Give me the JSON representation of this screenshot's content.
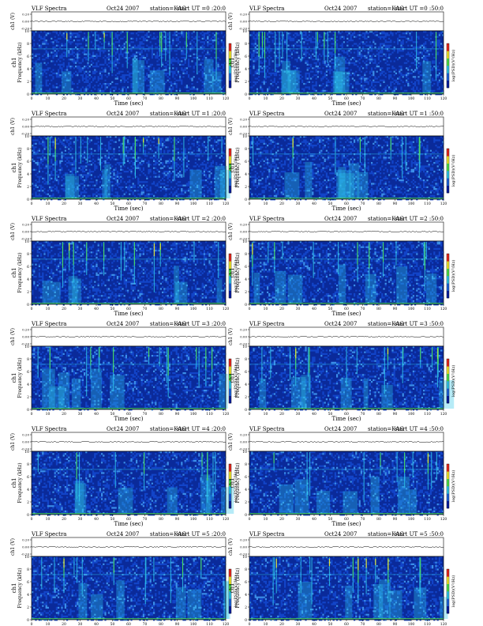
{
  "chart_data": [
    {
      "type": "heatmap",
      "heading": "VLF Spectra",
      "date": "Oct24 2007",
      "station": "station=KAG",
      "start_ut": "start UT =0 :20:0",
      "xlabel": "Time (sec)",
      "ylabel_top": "ch1 (V)",
      "ylabel_main": "ch1",
      "ylabel_freq": "Frequency (kHz)",
      "colorbar_label": "log(PSD)(V²/Hz)",
      "x_ticks": [
        0,
        10,
        20,
        30,
        40,
        50,
        60,
        70,
        80,
        90,
        100,
        110,
        120
      ],
      "y_ticks": [
        0,
        2,
        4,
        6,
        8,
        10
      ],
      "strip_ticks": [
        "0.20",
        "0.00",
        "-0.20"
      ],
      "xlim": [
        0,
        120
      ],
      "ylim": [
        0,
        10
      ]
    },
    {
      "type": "heatmap",
      "heading": "VLF Spectra",
      "date": "Oct24 2007",
      "station": "station=KAG",
      "start_ut": "start UT =0 :50:0",
      "xlabel": "Time (sec)",
      "ylabel_top": "ch1 (V)",
      "ylabel_main": "ch1",
      "ylabel_freq": "Frequency (kHz)",
      "colorbar_label": "log(PSD)(V²/Hz)",
      "x_ticks": [
        0,
        10,
        20,
        30,
        40,
        50,
        60,
        70,
        80,
        90,
        100,
        110,
        120
      ],
      "y_ticks": [
        0,
        2,
        4,
        6,
        8,
        10
      ],
      "strip_ticks": [
        "0.20",
        "0.00",
        "-0.20"
      ],
      "xlim": [
        0,
        120
      ],
      "ylim": [
        0,
        10
      ]
    },
    {
      "type": "heatmap",
      "heading": "VLF Spectra",
      "date": "Oct24 2007",
      "station": "station=KAG",
      "start_ut": "start UT =1 :20:0",
      "xlabel": "Time (sec)",
      "ylabel_top": "ch1 (V)",
      "ylabel_main": "ch1",
      "ylabel_freq": "Frequency (kHz)",
      "colorbar_label": "log(PSD)(V²/Hz)",
      "x_ticks": [
        0,
        10,
        20,
        30,
        40,
        50,
        60,
        70,
        80,
        90,
        100,
        110,
        120
      ],
      "y_ticks": [
        0,
        2,
        4,
        6,
        8,
        10
      ],
      "strip_ticks": [
        "0.20",
        "0.00",
        "-0.20"
      ],
      "xlim": [
        0,
        120
      ],
      "ylim": [
        0,
        10
      ]
    },
    {
      "type": "heatmap",
      "heading": "VLF Spectra",
      "date": "Oct24 2007",
      "station": "station=KAG",
      "start_ut": "start UT =1 :50:0",
      "xlabel": "Time (sec)",
      "ylabel_top": "ch1 (V)",
      "ylabel_main": "ch1",
      "ylabel_freq": "Frequency (kHz)",
      "colorbar_label": "log(PSD)(V²/Hz)",
      "x_ticks": [
        0,
        10,
        20,
        30,
        40,
        50,
        60,
        70,
        80,
        90,
        100,
        110,
        120
      ],
      "y_ticks": [
        0,
        2,
        4,
        6,
        8,
        10
      ],
      "strip_ticks": [
        "0.20",
        "0.00",
        "-0.20"
      ],
      "xlim": [
        0,
        120
      ],
      "ylim": [
        0,
        10
      ]
    },
    {
      "type": "heatmap",
      "heading": "VLF Spectra",
      "date": "Oct24 2007",
      "station": "station=KAG",
      "start_ut": "start UT =2 :20:0",
      "xlabel": "Time (sec)",
      "ylabel_top": "ch1 (V)",
      "ylabel_main": "ch1",
      "ylabel_freq": "Frequency (kHz)",
      "colorbar_label": "log(PSD)(V²/Hz)",
      "x_ticks": [
        0,
        10,
        20,
        30,
        40,
        50,
        60,
        70,
        80,
        90,
        100,
        110,
        120
      ],
      "y_ticks": [
        0,
        2,
        4,
        6,
        8,
        10
      ],
      "strip_ticks": [
        "0.20",
        "0.00",
        "-0.20"
      ],
      "xlim": [
        0,
        120
      ],
      "ylim": [
        0,
        10
      ]
    },
    {
      "type": "heatmap",
      "heading": "VLF Spectra",
      "date": "Oct24 2007",
      "station": "station=KAG",
      "start_ut": "start UT =2 :50:0",
      "xlabel": "Time (sec)",
      "ylabel_top": "ch1 (V)",
      "ylabel_main": "ch1",
      "ylabel_freq": "Frequency (kHz)",
      "colorbar_label": "log(PSD)(V²/Hz)",
      "x_ticks": [
        0,
        10,
        20,
        30,
        40,
        50,
        60,
        70,
        80,
        90,
        100,
        110,
        120
      ],
      "y_ticks": [
        0,
        2,
        4,
        6,
        8,
        10
      ],
      "strip_ticks": [
        "0.20",
        "0.00",
        "-0.20"
      ],
      "xlim": [
        0,
        120
      ],
      "ylim": [
        0,
        10
      ]
    },
    {
      "type": "heatmap",
      "heading": "VLF Spectra",
      "date": "Oct24 2007",
      "station": "station=KAG",
      "start_ut": "start UT =3 :20:0",
      "xlabel": "Time (sec)",
      "ylabel_top": "ch1 (V)",
      "ylabel_main": "ch1",
      "ylabel_freq": "Frequency (kHz)",
      "colorbar_label": "log(PSD)(V²/Hz)",
      "x_ticks": [
        0,
        10,
        20,
        30,
        40,
        50,
        60,
        70,
        80,
        90,
        100,
        110,
        120
      ],
      "y_ticks": [
        0,
        2,
        4,
        6,
        8,
        10
      ],
      "strip_ticks": [
        "0.20",
        "0.00",
        "-0.20"
      ],
      "xlim": [
        0,
        120
      ],
      "ylim": [
        0,
        10
      ]
    },
    {
      "type": "heatmap",
      "heading": "VLF Spectra",
      "date": "Oct24 2007",
      "station": "station=KAG",
      "start_ut": "start UT =3 :50:0",
      "xlabel": "Time (sec)",
      "ylabel_top": "ch1 (V)",
      "ylabel_main": "ch1",
      "ylabel_freq": "Frequency (kHz)",
      "colorbar_label": "log(PSD)(V²/Hz)",
      "x_ticks": [
        0,
        10,
        20,
        30,
        40,
        50,
        60,
        70,
        80,
        90,
        100,
        110,
        120
      ],
      "y_ticks": [
        0,
        2,
        4,
        6,
        8,
        10
      ],
      "strip_ticks": [
        "0.20",
        "0.00",
        "-0.20"
      ],
      "xlim": [
        0,
        120
      ],
      "ylim": [
        0,
        10
      ]
    },
    {
      "type": "heatmap",
      "heading": "VLF Spectra",
      "date": "Oct24 2007",
      "station": "station=KAG",
      "start_ut": "start UT =4 :20:0",
      "xlabel": "Time (sec)",
      "ylabel_top": "ch1 (V)",
      "ylabel_main": "ch1",
      "ylabel_freq": "Frequency (kHz)",
      "colorbar_label": "log(PSD)(V²/Hz)",
      "x_ticks": [
        0,
        10,
        20,
        30,
        40,
        50,
        60,
        70,
        80,
        90,
        100,
        110,
        120
      ],
      "y_ticks": [
        0,
        2,
        4,
        6,
        8,
        10
      ],
      "strip_ticks": [
        "0.20",
        "0.00",
        "-0.20"
      ],
      "xlim": [
        0,
        120
      ],
      "ylim": [
        0,
        10
      ]
    },
    {
      "type": "heatmap",
      "heading": "VLF Spectra",
      "date": "Oct24 2007",
      "station": "station=KAG",
      "start_ut": "start UT =4 :50:0",
      "xlabel": "Time (sec)",
      "ylabel_top": "ch1 (V)",
      "ylabel_main": "ch1",
      "ylabel_freq": "Frequency (kHz)",
      "colorbar_label": "log(PSD)(V²/Hz)",
      "x_ticks": [
        0,
        10,
        20,
        30,
        40,
        50,
        60,
        70,
        80,
        90,
        100,
        110,
        120
      ],
      "y_ticks": [
        0,
        2,
        4,
        6,
        8,
        10
      ],
      "strip_ticks": [
        "0.20",
        "0.00",
        "-0.20"
      ],
      "xlim": [
        0,
        120
      ],
      "ylim": [
        0,
        10
      ]
    },
    {
      "type": "heatmap",
      "heading": "VLF Spectra",
      "date": "Oct24 2007",
      "station": "station=KAG",
      "start_ut": "start UT =5 :20:0",
      "xlabel": "Time (sec)",
      "ylabel_top": "ch1 (V)",
      "ylabel_main": "ch1",
      "ylabel_freq": "Frequency (kHz)",
      "colorbar_label": "log(PSD)(V²/Hz)",
      "x_ticks": [
        0,
        10,
        20,
        30,
        40,
        50,
        60,
        70,
        80,
        90,
        100,
        110,
        120
      ],
      "y_ticks": [
        0,
        2,
        4,
        6,
        8,
        10
      ],
      "strip_ticks": [
        "0.20",
        "0.00",
        "-0.20"
      ],
      "xlim": [
        0,
        120
      ],
      "ylim": [
        0,
        10
      ]
    },
    {
      "type": "heatmap",
      "heading": "VLF Spectra",
      "date": "Oct24 2007",
      "station": "station=KAG",
      "start_ut": "start UT =5 :50:0",
      "xlabel": "Time (sec)",
      "ylabel_top": "ch1 (V)",
      "ylabel_main": "ch1",
      "ylabel_freq": "Frequency (kHz)",
      "colorbar_label": "log(PSD)(V²/Hz)",
      "x_ticks": [
        0,
        10,
        20,
        30,
        40,
        50,
        60,
        70,
        80,
        90,
        100,
        110,
        120
      ],
      "y_ticks": [
        0,
        2,
        4,
        6,
        8,
        10
      ],
      "strip_ticks": [
        "0.20",
        "0.00",
        "-0.20"
      ],
      "xlim": [
        0,
        120
      ],
      "ylim": [
        0,
        10
      ]
    }
  ],
  "colors": {
    "bg": "#0a2a9a",
    "bg2": "#1244c8",
    "cyan": "#2fc7e8",
    "green": "#4ee04a",
    "yellow": "#f2e62a",
    "red": "#e8281e"
  }
}
